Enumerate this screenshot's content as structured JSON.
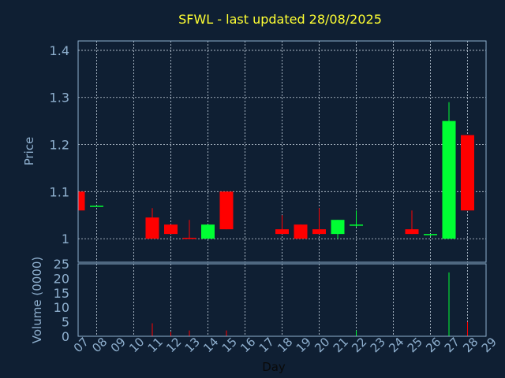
{
  "chart_data": {
    "type": "candlestick",
    "title": "SFWL - last updated 28/08/2025",
    "xlabel": "Day",
    "x_ticks": [
      "07",
      "08",
      "09",
      "10",
      "11",
      "12",
      "13",
      "14",
      "15",
      "16",
      "17",
      "18",
      "19",
      "20",
      "21",
      "22",
      "23",
      "24",
      "25",
      "26",
      "27",
      "28",
      "29"
    ],
    "price_panel": {
      "ylabel": "Price",
      "ylim": [
        0.95,
        1.42
      ],
      "y_ticks": [
        1,
        1.1,
        1.2,
        1.3,
        1.4
      ],
      "y_tick_labels": [
        "1",
        "1.1",
        "1.2",
        "1.3",
        "1.4"
      ]
    },
    "volume_panel": {
      "ylabel": "Volume (0000)",
      "ylim": [
        0,
        25
      ],
      "y_ticks": [
        0,
        5,
        10,
        15,
        20,
        25
      ],
      "y_tick_labels": [
        "0",
        "5",
        "10",
        "15",
        "20",
        "25"
      ]
    },
    "up_color": "#00ff33",
    "down_color": "#ff0000",
    "grid": true,
    "candles": [
      {
        "day": 7,
        "open": 1.1,
        "close": 1.06,
        "high": 1.1,
        "low": 1.06,
        "volume": 0
      },
      {
        "day": 8,
        "open": 1.07,
        "close": 1.07,
        "high": 1.07,
        "low": 1.07,
        "volume": 0
      },
      {
        "day": 11,
        "open": 1.045,
        "close": 1.0,
        "high": 1.065,
        "low": 1.0,
        "volume": 4.5
      },
      {
        "day": 12,
        "open": 1.03,
        "close": 1.01,
        "high": 1.03,
        "low": 1.01,
        "volume": 1.5
      },
      {
        "day": 13,
        "open": 1.002,
        "close": 1.0,
        "high": 1.04,
        "low": 1.0,
        "volume": 2
      },
      {
        "day": 14,
        "open": 1.0,
        "close": 1.03,
        "high": 1.03,
        "low": 1.0,
        "volume": 0
      },
      {
        "day": 15,
        "open": 1.1,
        "close": 1.02,
        "high": 1.1,
        "low": 1.02,
        "volume": 2
      },
      {
        "day": 18,
        "open": 1.02,
        "close": 1.01,
        "high": 1.05,
        "low": 1.01,
        "volume": 0
      },
      {
        "day": 19,
        "open": 1.03,
        "close": 1.0,
        "high": 1.03,
        "low": 1.0,
        "volume": 0
      },
      {
        "day": 20,
        "open": 1.02,
        "close": 1.01,
        "high": 1.065,
        "low": 1.01,
        "volume": 0
      },
      {
        "day": 21,
        "open": 1.01,
        "close": 1.04,
        "high": 1.04,
        "low": 1.0,
        "volume": 0
      },
      {
        "day": 22,
        "open": 1.03,
        "close": 1.03,
        "high": 1.06,
        "low": 1.025,
        "volume": 2
      },
      {
        "day": 25,
        "open": 1.02,
        "close": 1.01,
        "high": 1.06,
        "low": 1.01,
        "volume": 0
      },
      {
        "day": 26,
        "open": 1.008,
        "close": 1.01,
        "high": 1.01,
        "low": 1.005,
        "volume": 0
      },
      {
        "day": 27,
        "open": 1.0,
        "close": 1.25,
        "high": 1.29,
        "low": 1.0,
        "volume": 22
      },
      {
        "day": 28,
        "open": 1.22,
        "close": 1.06,
        "high": 1.22,
        "low": 1.06,
        "volume": 5
      }
    ]
  }
}
